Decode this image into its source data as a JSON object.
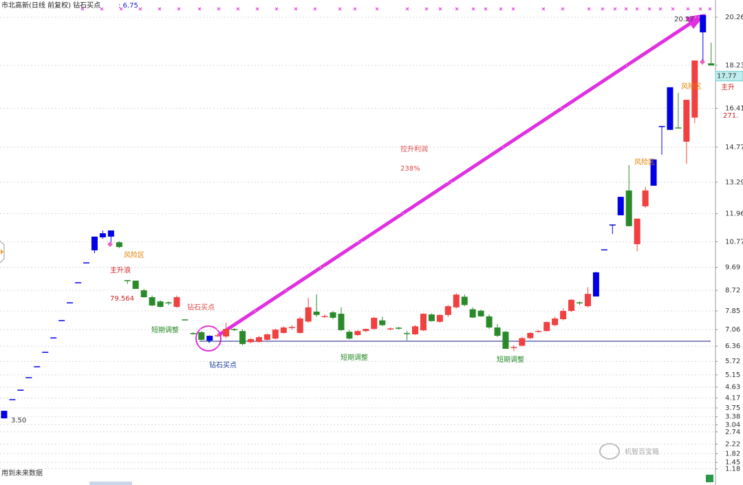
{
  "chart_data": {
    "type": "candlestick",
    "header_title": "市北高新(日线 前复权) 钻石买点",
    "header_value": ": 6.75",
    "ylim": [
      0.64,
      20.9
    ],
    "yticks": [
      20.26,
      18.23,
      16.41,
      14.77,
      13.29,
      11.96,
      10.77,
      9.69,
      8.72,
      7.85,
      7.06,
      6.36,
      5.72,
      5.15,
      4.63,
      4.17,
      3.75,
      3.38,
      3.04,
      2.74,
      2.22,
      1.82,
      1.45,
      1.18
    ],
    "grid": true,
    "last_price": 17.77,
    "support_line": 6.57,
    "series": [
      {
        "values": [
          [
            3.63,
            3.63,
            3.31,
            3.31
          ],
          [
            4.1,
            4.1,
            4.1,
            4.1
          ],
          [
            4.5,
            4.5,
            4.5,
            4.5
          ],
          [
            5.03,
            5.03,
            5.03,
            5.03
          ],
          [
            5.49,
            5.49,
            5.49,
            5.49
          ],
          [
            6.1,
            6.1,
            6.1,
            6.1
          ],
          [
            6.71,
            6.71,
            6.71,
            6.71
          ],
          [
            7.44,
            7.44,
            7.44,
            7.44
          ],
          [
            8.19,
            8.19,
            8.19,
            8.19
          ],
          [
            9.04,
            9.04,
            9.04,
            9.04
          ],
          [
            9.88,
            9.88,
            9.88,
            9.88
          ],
          [
            10.41,
            10.99,
            10.29,
            10.99
          ],
          [
            10.96,
            11.25,
            10.9,
            11.13
          ],
          [
            10.99,
            11.25,
            10.75,
            11.25
          ],
          [
            10.75,
            10.8,
            10.5,
            10.55
          ],
          [
            9.13,
            9.13,
            8.99,
            9.13
          ],
          [
            9.13,
            9.13,
            8.78,
            8.78
          ],
          [
            8.72,
            8.78,
            8.4,
            8.43
          ],
          [
            8.43,
            8.5,
            8.05,
            8.08
          ],
          [
            8.25,
            8.3,
            8.0,
            8.02
          ],
          [
            8.19,
            8.25,
            8.1,
            8.19
          ],
          [
            8.02,
            8.5,
            7.98,
            8.43
          ],
          [
            7.47,
            7.47,
            7.47,
            7.47
          ],
          [
            6.89,
            6.95,
            6.85,
            6.89
          ],
          [
            6.95,
            7.0,
            6.6,
            6.63
          ],
          [
            6.8,
            6.82,
            6.58,
            6.6
          ],
          [
            6.8,
            6.9,
            6.75,
            6.8
          ],
          [
            6.77,
            7.35,
            6.7,
            7.09
          ],
          [
            7.06,
            7.12,
            7.0,
            7.06
          ],
          [
            7.0,
            7.08,
            6.4,
            6.45
          ],
          [
            6.53,
            6.7,
            6.48,
            6.66
          ],
          [
            6.54,
            6.8,
            6.5,
            6.74
          ],
          [
            6.63,
            6.9,
            6.6,
            6.86
          ],
          [
            6.68,
            7.1,
            6.65,
            7.06
          ],
          [
            6.92,
            7.2,
            6.9,
            7.15
          ],
          [
            7.15,
            7.25,
            7.05,
            7.15
          ],
          [
            6.92,
            7.6,
            6.9,
            7.53
          ],
          [
            7.4,
            8.4,
            7.35,
            8.0
          ],
          [
            7.82,
            8.55,
            7.6,
            7.68
          ],
          [
            7.61,
            7.7,
            7.55,
            7.61
          ],
          [
            7.79,
            7.85,
            7.5,
            7.56
          ],
          [
            7.73,
            8.0,
            7.0,
            7.04
          ],
          [
            6.97,
            7.05,
            6.65,
            6.68
          ],
          [
            6.83,
            7.05,
            6.8,
            7.0
          ],
          [
            7.0,
            7.1,
            6.95,
            7.09
          ],
          [
            7.09,
            7.6,
            7.05,
            7.56
          ],
          [
            7.45,
            7.6,
            7.2,
            7.25
          ],
          [
            7.09,
            7.15,
            7.03,
            7.09
          ],
          [
            7.12,
            7.18,
            7.06,
            7.12
          ],
          [
            6.89,
            7.0,
            6.6,
            6.89
          ],
          [
            6.86,
            7.25,
            6.84,
            7.2
          ],
          [
            7.03,
            7.75,
            7.0,
            7.73
          ],
          [
            7.7,
            7.75,
            7.4,
            7.42
          ],
          [
            7.39,
            7.7,
            7.35,
            7.68
          ],
          [
            7.68,
            8.1,
            7.6,
            8.05
          ],
          [
            8.0,
            8.6,
            7.95,
            8.54
          ],
          [
            8.45,
            8.55,
            8.05,
            8.1
          ],
          [
            7.92,
            8.0,
            7.55,
            7.57
          ],
          [
            7.86,
            7.9,
            7.6,
            7.62
          ],
          [
            7.62,
            7.7,
            7.1,
            7.15
          ],
          [
            7.15,
            7.3,
            6.75,
            6.8
          ],
          [
            6.97,
            7.0,
            6.25,
            6.25
          ],
          [
            6.3,
            6.4,
            6.15,
            6.3
          ],
          [
            6.38,
            6.75,
            6.35,
            6.7
          ],
          [
            6.7,
            6.95,
            6.65,
            6.92
          ],
          [
            6.98,
            7.05,
            6.93,
            6.98
          ],
          [
            7.0,
            7.4,
            6.98,
            7.38
          ],
          [
            7.25,
            7.6,
            7.2,
            7.53
          ],
          [
            7.5,
            7.95,
            7.45,
            7.85
          ],
          [
            7.85,
            8.35,
            7.8,
            8.32
          ],
          [
            8.19,
            8.25,
            8.1,
            8.19
          ],
          [
            8.05,
            8.85,
            8.0,
            8.57
          ],
          [
            8.46,
            9.5,
            8.46,
            9.48
          ],
          [
            10.43,
            10.43,
            10.43,
            10.43
          ],
          [
            11.48,
            11.48,
            11.1,
            11.48
          ],
          [
            11.89,
            12.67,
            11.89,
            12.67
          ],
          [
            12.94,
            14.01,
            11.43,
            11.43
          ],
          [
            10.67,
            11.75,
            10.37,
            11.75
          ],
          [
            12.27,
            13.1,
            12.2,
            12.94
          ],
          [
            13.14,
            14.25,
            13.14,
            14.25
          ],
          [
            15.64,
            15.64,
            14.45,
            15.64
          ],
          [
            15.5,
            17.3,
            15.5,
            17.3
          ],
          [
            15.58,
            17.07,
            15.58,
            15.58
          ],
          [
            15.0,
            16.77,
            14.07,
            16.77
          ],
          [
            16.02,
            18.43,
            15.79,
            18.43
          ],
          [
            20.35,
            20.35,
            18.43,
            19.62
          ],
          [
            18.31,
            19.19,
            18.22,
            18.22
          ]
        ],
        "colors": [
          "#0000e6",
          "#0000e6",
          "#0000e6",
          "#0000e6",
          "#0000e6",
          "#0000e6",
          "#0000e6",
          "#0000e6",
          "#0000e6",
          "#0000e6",
          "#0000e6",
          "#0000e6",
          "#0000e6",
          "#0000e6",
          "#2a8a2a",
          "#2a8a2a",
          "#2a8a2a",
          "#2a8a2a",
          "#2a8a2a",
          "#2a8a2a",
          "#2a8a2a",
          "#f04040",
          "#2a8a2a",
          "#2a8a2a",
          "#2a8a2a",
          "#0000e6",
          "#f04040",
          "#f04040",
          "#2a8a2a",
          "#2a8a2a",
          "#f04040",
          "#f04040",
          "#f04040",
          "#f04040",
          "#f04040",
          "#f04040",
          "#f04040",
          "#f04040",
          "#2a8a2a",
          "#f04040",
          "#2a8a2a",
          "#2a8a2a",
          "#2a8a2a",
          "#f04040",
          "#f04040",
          "#f04040",
          "#2a8a2a",
          "#f04040",
          "#2a8a2a",
          "#2a8a2a",
          "#f04040",
          "#f04040",
          "#2a8a2a",
          "#f04040",
          "#f04040",
          "#f04040",
          "#2a8a2a",
          "#2a8a2a",
          "#2a8a2a",
          "#2a8a2a",
          "#2a8a2a",
          "#2a8a2a",
          "#f04040",
          "#f04040",
          "#f04040",
          "#f04040",
          "#f04040",
          "#f04040",
          "#f04040",
          "#f04040",
          "#2a8a2a",
          "#f04040",
          "#0000e6",
          "#0000e6",
          "#0000e6",
          "#0000e6",
          "#2a8a2a",
          "#f04040",
          "#f04040",
          "#0000e6",
          "#0000e6",
          "#0000e6",
          "#2a8a2a",
          "#f04040",
          "#f04040",
          "#0000e6",
          "#2a8a2a"
        ]
      }
    ],
    "annotations": [
      "拉升利润",
      "238%",
      "钻石买点",
      "钻石买点",
      "短期调整",
      "短期调整",
      "短期调整",
      "主升浪",
      "风险区",
      "风险区",
      "风险区",
      "79.564",
      "主升",
      "271.",
      "20.27",
      "3.50",
      "用到未来数据",
      "机智百宝箱"
    ]
  }
}
